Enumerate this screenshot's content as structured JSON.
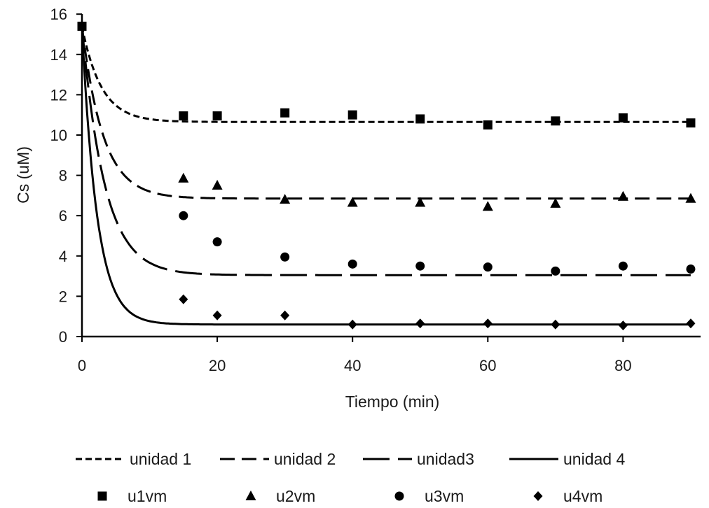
{
  "chart_data": {
    "type": "line",
    "xlabel": "Tiempo (min)",
    "ylabel": "Cs (uM)",
    "xlim": [
      0,
      90
    ],
    "ylim": [
      0,
      16
    ],
    "xticks": [
      0,
      20,
      40,
      60,
      80
    ],
    "yticks": [
      0,
      2,
      4,
      6,
      8,
      10,
      12,
      14,
      16
    ],
    "grid": false,
    "legend_position": "bottom",
    "model_series": [
      {
        "name": "unidad 1",
        "c0": 15.4,
        "c_eq": 10.65,
        "k": 0.35,
        "dash": "dotted-short"
      },
      {
        "name": "unidad 2",
        "c0": 15.4,
        "c_eq": 6.85,
        "k": 0.32,
        "dash": "medium"
      },
      {
        "name": "unidad3",
        "c0": 15.4,
        "c_eq": 3.05,
        "k": 0.3,
        "dash": "long"
      },
      {
        "name": "unidad 4",
        "c0": 15.4,
        "c_eq": 0.6,
        "k": 0.45,
        "dash": "solid"
      }
    ],
    "measured_series": [
      {
        "name": "u1vm",
        "marker": "square",
        "x": [
          0,
          15,
          20,
          30,
          40,
          50,
          60,
          70,
          80,
          90
        ],
        "y": [
          15.4,
          10.95,
          10.95,
          11.1,
          11.0,
          10.8,
          10.5,
          10.7,
          10.85,
          10.6
        ]
      },
      {
        "name": "u2vm",
        "marker": "triangle",
        "x": [
          15,
          20,
          30,
          40,
          50,
          60,
          70,
          80,
          90
        ],
        "y": [
          7.85,
          7.5,
          6.8,
          6.65,
          6.65,
          6.45,
          6.6,
          6.95,
          6.85
        ]
      },
      {
        "name": "u3vm",
        "marker": "circle",
        "x": [
          15,
          20,
          30,
          40,
          50,
          60,
          70,
          80,
          90
        ],
        "y": [
          6.0,
          4.7,
          3.95,
          3.6,
          3.5,
          3.45,
          3.25,
          3.5,
          3.35
        ]
      },
      {
        "name": "u4vm",
        "marker": "diamond",
        "x": [
          15,
          20,
          30,
          40,
          50,
          60,
          70,
          80,
          90
        ],
        "y": [
          1.85,
          1.05,
          1.05,
          0.6,
          0.65,
          0.65,
          0.6,
          0.55,
          0.65
        ]
      }
    ]
  }
}
